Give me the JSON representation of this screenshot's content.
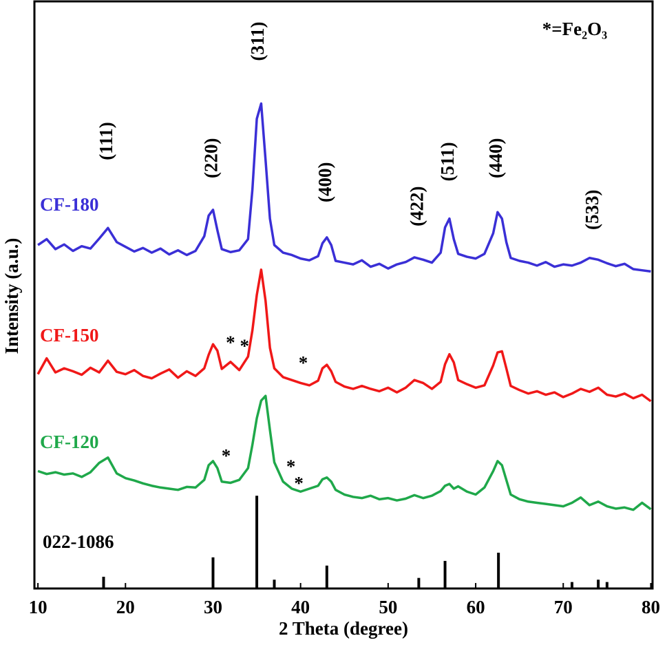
{
  "chart_data": {
    "type": "line",
    "xlabel": "2 Theta (degree)",
    "ylabel": "Intensity (a.u.)",
    "note": "*=Fe₂O₃",
    "xlim": [
      9.6,
      80.2
    ],
    "xticks": [
      10,
      20,
      30,
      40,
      50,
      60,
      70,
      80
    ],
    "ylim": [
      0,
      100
    ],
    "x": [
      10,
      11,
      12,
      13,
      14,
      15,
      16,
      17,
      18,
      19,
      20,
      21,
      22,
      23,
      24,
      25,
      26,
      27,
      28,
      29,
      29.5,
      30,
      30.5,
      31,
      32,
      33,
      34,
      34.5,
      35,
      35.5,
      36,
      36.5,
      37,
      38,
      39,
      40,
      41,
      42,
      42.5,
      43,
      43.5,
      44,
      45,
      46,
      47,
      48,
      49,
      50,
      51,
      52,
      53,
      54,
      55,
      56,
      56.5,
      57,
      57.5,
      58,
      59,
      60,
      61,
      62,
      62.5,
      63,
      63.5,
      64,
      65,
      66,
      67,
      68,
      69,
      70,
      71,
      72,
      73,
      74,
      75,
      76,
      77,
      78,
      79,
      80
    ],
    "series": [
      {
        "name": "CF-180",
        "color": "#3a2fd6",
        "values": [
          58.5,
          59.5,
          57.8,
          58.6,
          57.5,
          58.3,
          57.9,
          59.6,
          61.4,
          59.0,
          58.2,
          57.4,
          58.0,
          57.2,
          57.9,
          56.9,
          57.6,
          56.8,
          57.5,
          60.0,
          63.5,
          64.5,
          61.0,
          57.8,
          57.3,
          57.6,
          59.5,
          68,
          80,
          82.6,
          73,
          63,
          58.5,
          57.2,
          56.8,
          56.2,
          55.9,
          56.6,
          58.8,
          59.8,
          58.5,
          55.8,
          55.5,
          55.2,
          55.9,
          54.8,
          55.3,
          54.5,
          55.2,
          55.6,
          56.4,
          56.0,
          55.5,
          57.2,
          61.5,
          63.0,
          59.5,
          57.0,
          56.5,
          56.2,
          57.0,
          60.5,
          64.1,
          63.0,
          59.0,
          56.3,
          55.8,
          55.5,
          55.0,
          55.6,
          54.8,
          55.2,
          55.0,
          55.5,
          56.3,
          56.0,
          55.4,
          54.9,
          55.3,
          54.4,
          54.2,
          54.0
        ]
      },
      {
        "name": "CF-150",
        "color": "#f01818",
        "values": [
          36.5,
          39.2,
          36.8,
          37.5,
          37.0,
          36.4,
          37.6,
          36.8,
          38.8,
          36.9,
          36.5,
          37.2,
          36.2,
          35.8,
          36.6,
          37.3,
          35.9,
          37.0,
          36.2,
          37.5,
          39.8,
          41.6,
          40.5,
          37.4,
          38.6,
          37.2,
          39.5,
          44,
          50,
          54.3,
          49,
          41,
          37.5,
          36.0,
          35.5,
          35.0,
          34.6,
          35.4,
          37.5,
          38.1,
          37.0,
          35.2,
          34.4,
          34.0,
          34.5,
          34.0,
          33.6,
          34.2,
          33.4,
          34.2,
          35.5,
          35.0,
          34.0,
          35.2,
          38.2,
          39.9,
          38.5,
          35.5,
          34.8,
          34.2,
          34.6,
          38.0,
          40.2,
          40.4,
          37.5,
          34.5,
          33.8,
          33.2,
          33.6,
          33.0,
          33.4,
          32.6,
          33.2,
          34.0,
          33.5,
          34.2,
          33.0,
          32.7,
          33.2,
          32.4,
          33.0,
          31.9
        ]
      },
      {
        "name": "CF-120",
        "color": "#1fa84a",
        "values": [
          20.0,
          19.5,
          19.8,
          19.4,
          19.6,
          19.0,
          19.8,
          21.4,
          22.3,
          19.6,
          18.8,
          18.4,
          17.9,
          17.5,
          17.2,
          17.0,
          16.8,
          17.3,
          17.2,
          18.5,
          21.0,
          21.7,
          20.5,
          18.2,
          18.0,
          18.5,
          20.5,
          24.5,
          29,
          32.0,
          32.8,
          27,
          21.5,
          18.2,
          17.0,
          16.5,
          17.0,
          17.5,
          18.6,
          18.9,
          18.2,
          16.8,
          16.0,
          15.6,
          15.4,
          15.8,
          15.2,
          15.4,
          15.0,
          15.3,
          15.9,
          15.4,
          15.8,
          16.6,
          17.5,
          17.8,
          17.0,
          17.4,
          16.5,
          16.0,
          17.2,
          20.0,
          21.7,
          21.0,
          18.5,
          16.0,
          15.2,
          14.8,
          14.6,
          14.4,
          14.2,
          14.0,
          14.6,
          15.5,
          14.2,
          14.8,
          14.0,
          13.6,
          13.8,
          13.4,
          14.6,
          13.5
        ]
      }
    ],
    "reference": {
      "name": "022-1086",
      "color": "#000000",
      "x": [
        17.5,
        30,
        35,
        37,
        43,
        53.5,
        56.5,
        62.6,
        71,
        74,
        75
      ],
      "values": [
        2.0,
        5.3,
        15.8,
        1.5,
        3.9,
        1.8,
        4.7,
        6.1,
        1.1,
        1.5,
        1.1
      ]
    },
    "annotations": [
      {
        "text": "(111)",
        "x": 18,
        "y": 76.2
      },
      {
        "text": "(220)",
        "x": 30,
        "y": 73.3
      },
      {
        "text": "(311)",
        "x": 35.3,
        "y": 93.2
      },
      {
        "text": "(400)",
        "x": 43,
        "y": 69.2
      },
      {
        "text": "(422)",
        "x": 53.5,
        "y": 65.1
      },
      {
        "text": "(511)",
        "x": 57,
        "y": 72.7
      },
      {
        "text": "(440)",
        "x": 62.5,
        "y": 73.3
      },
      {
        "text": "(533)",
        "x": 73.5,
        "y": 64.5
      },
      {
        "text": "*",
        "x": 32,
        "y": 41.6
      },
      {
        "text": "*",
        "x": 33.6,
        "y": 41.0
      },
      {
        "text": "*",
        "x": 40.3,
        "y": 38.1
      },
      {
        "text": "*",
        "x": 31.5,
        "y": 22.3
      },
      {
        "text": "*",
        "x": 38.9,
        "y": 20.5
      },
      {
        "text": "*",
        "x": 39.8,
        "y": 17.6
      }
    ]
  }
}
